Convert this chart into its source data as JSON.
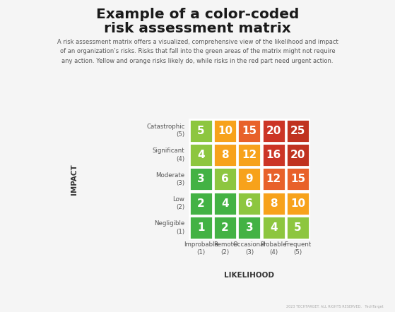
{
  "title_line1": "Example of a color-coded",
  "title_line2": "risk assessment matrix",
  "subtitle": "A risk assessment matrix offers a visualized, comprehensive view of the likelihood and impact\nof an organization’s risks. Risks that fall into the green areas of the matrix might not require\nany action. Yellow and orange risks likely do, while risks in the red part need urgent action.",
  "matrix_values": [
    [
      5,
      10,
      15,
      20,
      25
    ],
    [
      4,
      8,
      12,
      16,
      20
    ],
    [
      3,
      6,
      9,
      12,
      15
    ],
    [
      2,
      4,
      6,
      8,
      10
    ],
    [
      1,
      2,
      3,
      4,
      5
    ]
  ],
  "matrix_colors": [
    [
      "#8dc63f",
      "#f7a21b",
      "#e8612a",
      "#cc3526",
      "#c0321f"
    ],
    [
      "#8dc63f",
      "#f7a21b",
      "#f7a21b",
      "#cc3526",
      "#c0321f"
    ],
    [
      "#43b244",
      "#8dc63f",
      "#f7a21b",
      "#e8612a",
      "#e8612a"
    ],
    [
      "#43b244",
      "#43b244",
      "#8dc63f",
      "#f7a21b",
      "#f7a21b"
    ],
    [
      "#43b244",
      "#43b244",
      "#43b244",
      "#8dc63f",
      "#8dc63f"
    ]
  ],
  "row_labels": [
    "Catastrophic\n(5)",
    "Significant\n(4)",
    "Moderate\n(3)",
    "Low\n(2)",
    "Negligible\n(1)"
  ],
  "col_labels": [
    "Improbable\n(1)",
    "Remote\n(2)",
    "Occasional\n(3)",
    "Probable\n(4)",
    "Frequent\n(5)"
  ],
  "y_axis_label": "IMPACT",
  "x_axis_label": "LIKELIHOOD",
  "outer_bg": "#f5f5f5",
  "inner_bg": "#ffffff",
  "label_area_bg": "#ebebeb",
  "likelihood_bar_bg": "#d8d8d8",
  "cell_text_color": "#ffffff",
  "title_color": "#1a1a1a",
  "label_color": "#555555",
  "axis_label_color": "#333333",
  "footer_text": "2023 TECHTARGET. ALL RIGHTS RESERVED.   TechTarget"
}
